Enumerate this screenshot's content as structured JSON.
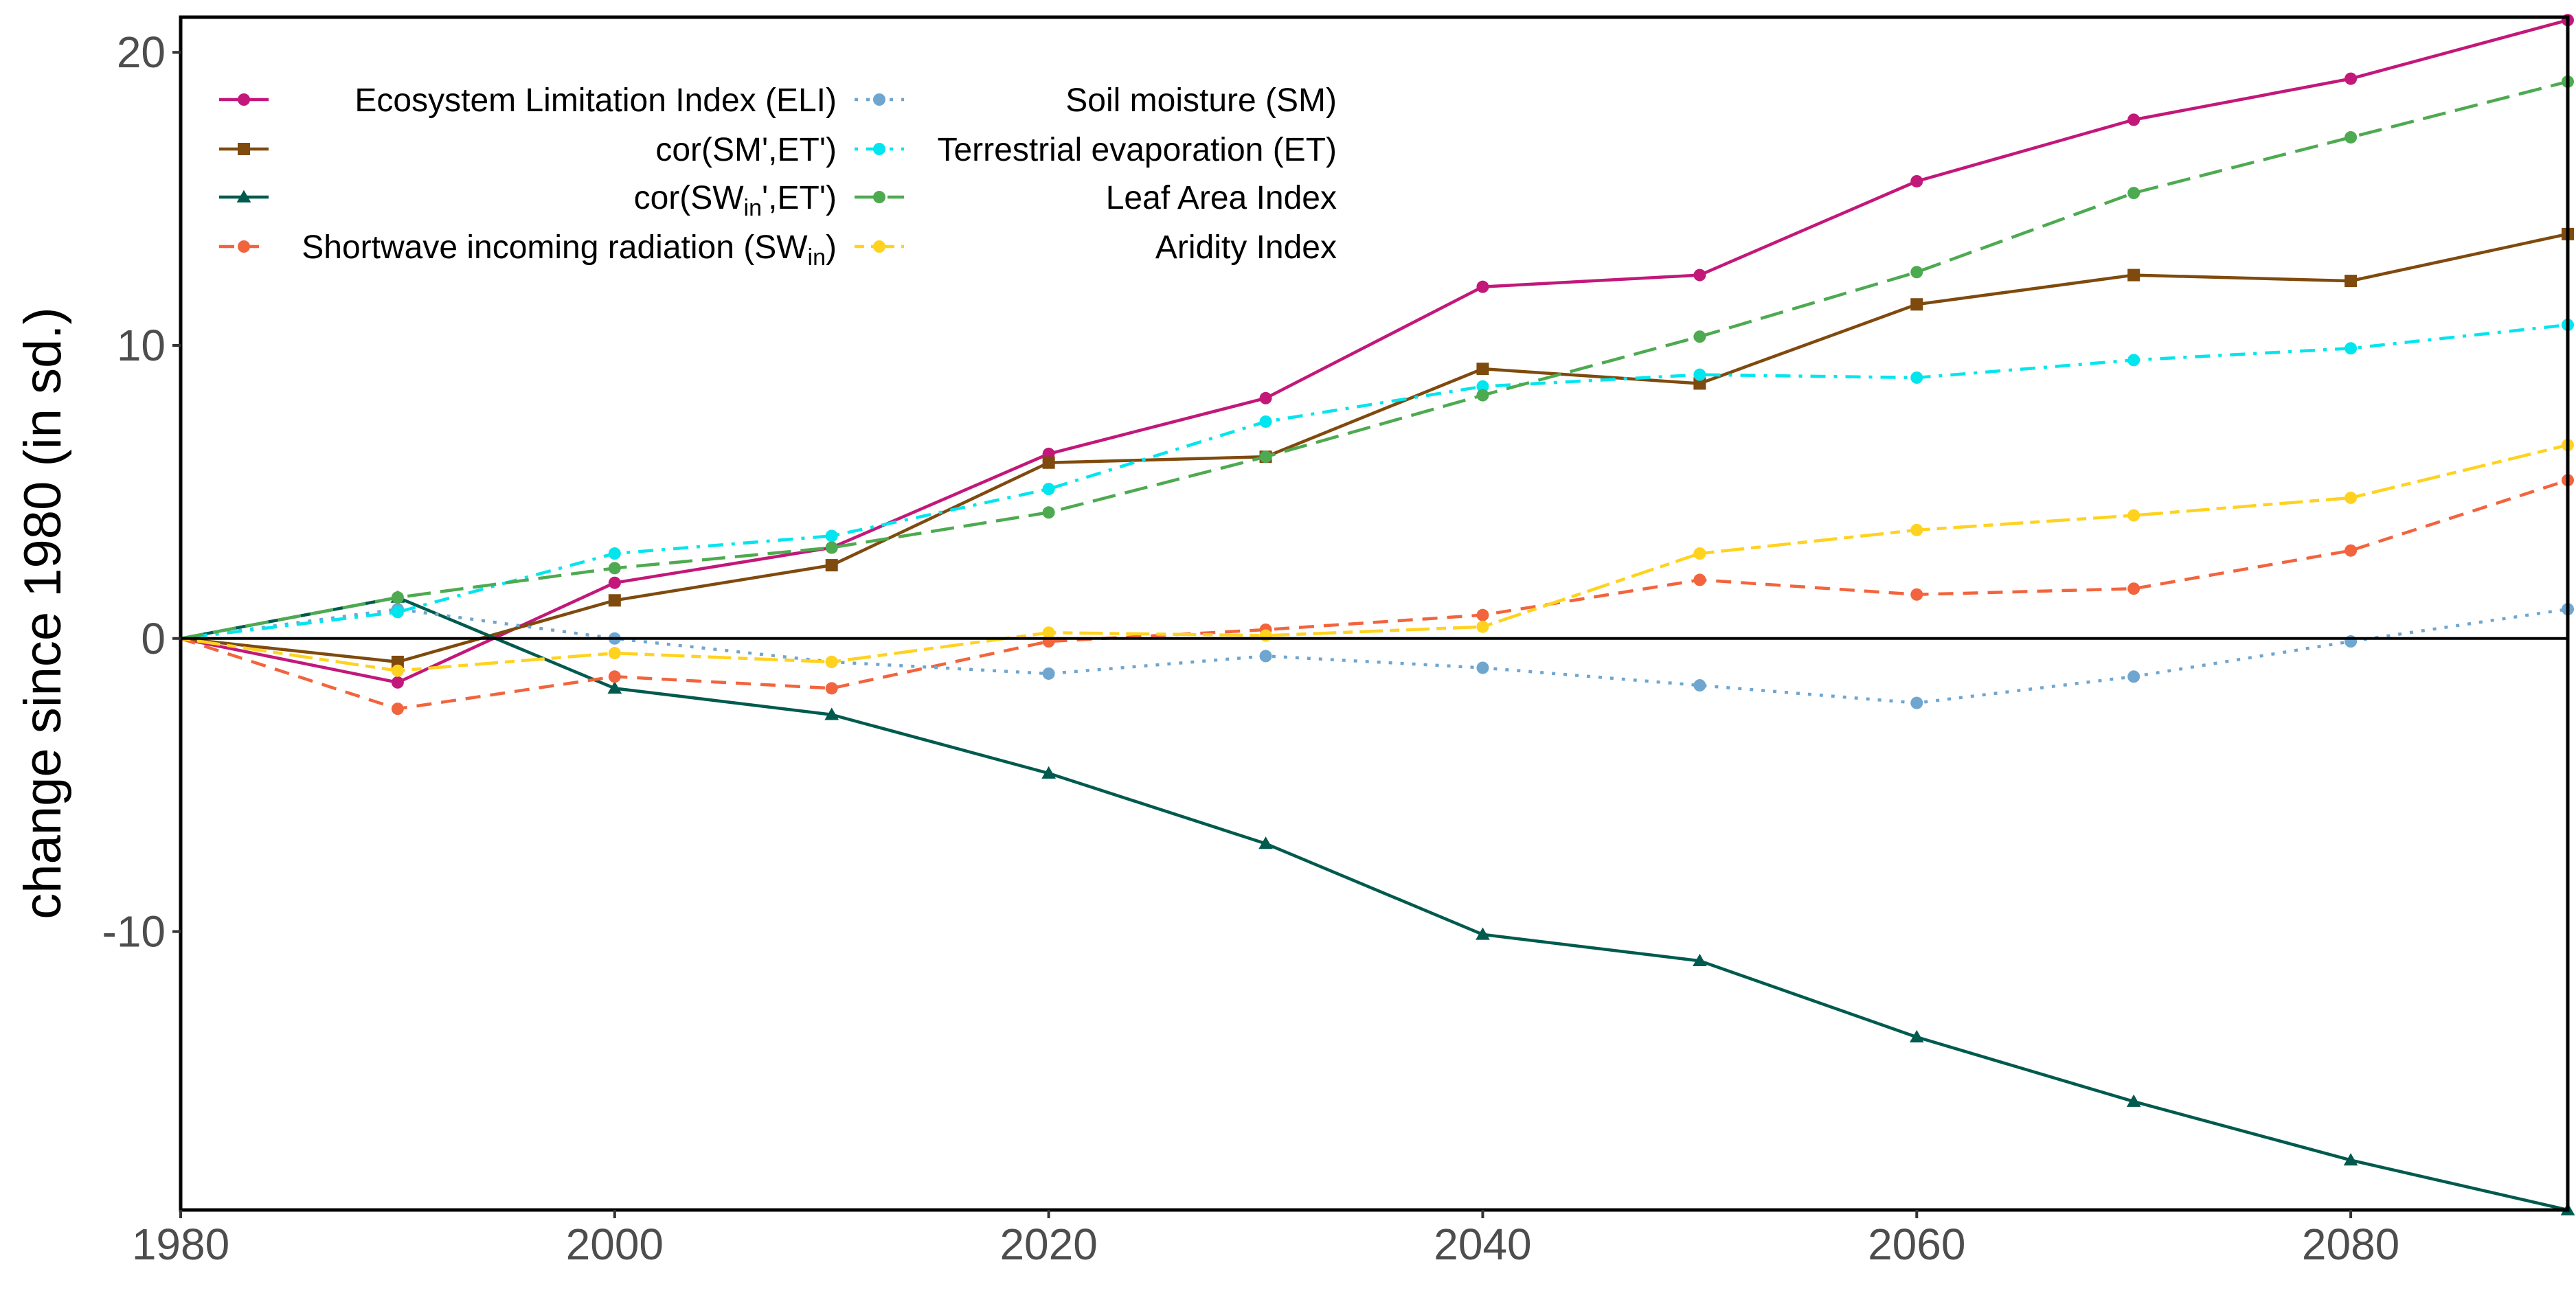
{
  "chart_data": {
    "type": "line",
    "title": "",
    "xlabel": "",
    "ylabel": "change since 1980 (in sd.)",
    "xlim": [
      1980,
      2090
    ],
    "ylim": [
      -19.5,
      21.2
    ],
    "x_ticks": [
      1980,
      2000,
      2020,
      2040,
      2060,
      2080
    ],
    "y_ticks": [
      -10,
      0,
      10,
      20
    ],
    "x_tick_labels": [
      "1980",
      "2000",
      "2020",
      "2040",
      "2060",
      "2080"
    ],
    "y_tick_labels": [
      "-10",
      "0",
      "10",
      "20"
    ],
    "grid": false,
    "zero_line": true,
    "legend_position": "top-left",
    "x": [
      1980,
      1990,
      2000,
      2010,
      2020,
      2030,
      2040,
      2050,
      2060,
      2070,
      2080,
      2090
    ],
    "series": [
      {
        "name": "Ecosystem Limitation Index (ELI)",
        "color": "#C2187A",
        "dash": "solid",
        "marker": "circle",
        "values": [
          0,
          -1.5,
          1.9,
          3.1,
          6.3,
          8.2,
          12.0,
          12.4,
          15.6,
          17.7,
          19.1,
          21.1
        ]
      },
      {
        "name": "cor(SM',ET')",
        "color": "#7F4A0D",
        "dash": "solid",
        "marker": "square",
        "values": [
          0,
          -0.8,
          1.3,
          2.5,
          6.0,
          6.2,
          9.2,
          8.7,
          11.4,
          12.4,
          12.2,
          13.8
        ]
      },
      {
        "name": "cor(SWin',ET')",
        "name_parts": [
          "cor(SW",
          "in",
          "',ET')"
        ],
        "color": "#005A4E",
        "dash": "solid",
        "marker": "triangle",
        "values": [
          0,
          1.4,
          -1.7,
          -2.6,
          -4.6,
          -7.0,
          -10.1,
          -11.0,
          -13.6,
          -15.8,
          -17.8,
          -19.5
        ]
      },
      {
        "name": "Shortwave incoming radiation (SWin)",
        "name_parts": [
          "Shortwave incoming radiation (SW",
          "in",
          ")"
        ],
        "color": "#F2643D",
        "dash": "dashed",
        "marker": "circle",
        "values": [
          0,
          -2.4,
          -1.3,
          -1.7,
          -0.1,
          0.3,
          0.8,
          2.0,
          1.5,
          1.7,
          3.0,
          5.4
        ]
      },
      {
        "name": "Soil moisture (SM)",
        "color": "#6FA6D0",
        "dash": "dotted",
        "marker": "circle",
        "values": [
          0,
          1.0,
          0.0,
          -0.8,
          -1.2,
          -0.6,
          -1.0,
          -1.6,
          -2.2,
          -1.3,
          -0.1,
          1.0
        ]
      },
      {
        "name": "Terrestrial evaporation (ET)",
        "color": "#00E5EE",
        "dash": "dashdot",
        "marker": "circle",
        "values": [
          0,
          0.9,
          2.9,
          3.5,
          5.1,
          7.4,
          8.6,
          9.0,
          8.9,
          9.5,
          9.9,
          10.7
        ]
      },
      {
        "name": "Leaf Area Index",
        "color": "#4DAA50",
        "dash": "longdash",
        "marker": "circle",
        "values": [
          0,
          1.4,
          2.4,
          3.1,
          4.3,
          6.2,
          8.3,
          10.3,
          12.5,
          15.2,
          17.1,
          19.0
        ]
      },
      {
        "name": "Aridity Index",
        "color": "#FFD21F",
        "dash": "twodash",
        "marker": "circle",
        "values": [
          0,
          -1.1,
          -0.5,
          -0.8,
          0.2,
          0.1,
          0.4,
          2.9,
          3.7,
          4.2,
          4.8,
          6.6
        ]
      }
    ]
  }
}
